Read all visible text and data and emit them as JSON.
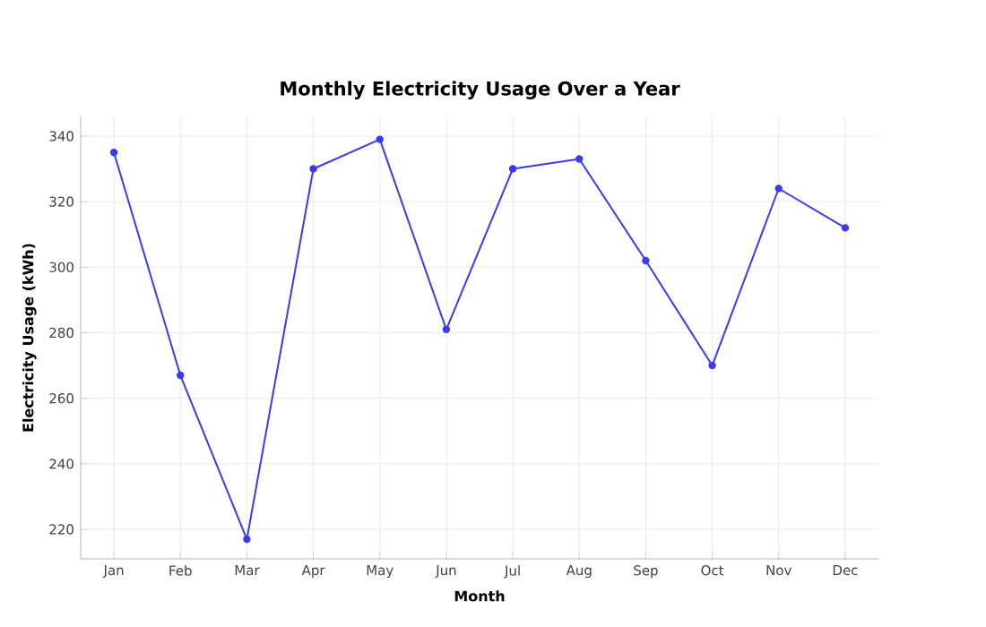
{
  "chart_data": {
    "type": "line",
    "title": "Monthly Electricity Usage Over a Year",
    "xlabel": "Month",
    "ylabel": "Electricity Usage (kWh)",
    "categories": [
      "Jan",
      "Feb",
      "Mar",
      "Apr",
      "May",
      "Jun",
      "Jul",
      "Aug",
      "Sep",
      "Oct",
      "Nov",
      "Dec"
    ],
    "series": [
      {
        "color": "#3a3af0",
        "values": [
          335,
          267,
          217,
          330,
          339,
          281,
          330,
          333,
          302,
          270,
          324,
          312
        ]
      }
    ],
    "ylim": [
      211,
      346
    ],
    "yticks": [
      220,
      240,
      260,
      280,
      300,
      320,
      340
    ],
    "grid": true,
    "marker": "circle",
    "line_style": "solid"
  }
}
